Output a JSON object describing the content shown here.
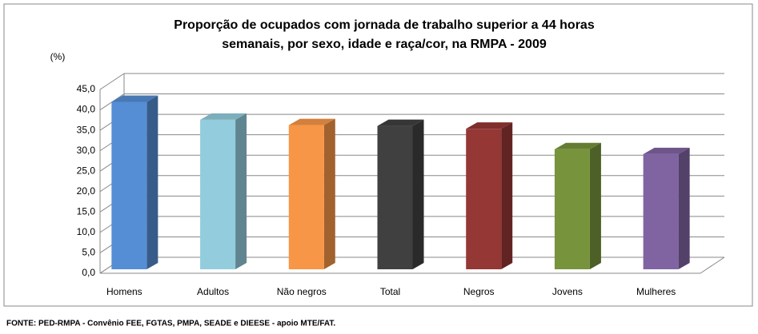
{
  "chart_data": {
    "type": "bar3d",
    "title": [
      "Proporção de ocupados com jornada de trabalho superior a 44 horas",
      "semanais, por sexo, idade e raça/cor, na RMPA - 2009"
    ],
    "y_label": "(%)",
    "categories": [
      "Homens",
      "Adultos",
      "Não negros",
      "Total",
      "Negros",
      "Jovens",
      "Mulheres"
    ],
    "values": [
      41.0,
      36.6,
      35.3,
      35.1,
      34.4,
      29.4,
      28.2
    ],
    "colors": [
      "#558ed5",
      "#93cddd",
      "#f79646",
      "#404040",
      "#953735",
      "#77933c",
      "#8064a2"
    ],
    "ylim": [
      0,
      45
    ],
    "yticks": [
      {
        "value": 0,
        "label": "0,0"
      },
      {
        "value": 5,
        "label": "5,0"
      },
      {
        "value": 10,
        "label": "10,0"
      },
      {
        "value": 15,
        "label": "15,0"
      },
      {
        "value": 20,
        "label": "20,0"
      },
      {
        "value": 25,
        "label": "25,0"
      },
      {
        "value": 30,
        "label": "30,0"
      },
      {
        "value": 35,
        "label": "35,0"
      },
      {
        "value": 40,
        "label": "40,0"
      },
      {
        "value": 45,
        "label": "45,0"
      }
    ],
    "grid": true,
    "source": "FONTE: PED-RMPA - Convênio FEE, FGTAS, PMPA, SEADE e DIEESE - apoio MTE/FAT."
  }
}
